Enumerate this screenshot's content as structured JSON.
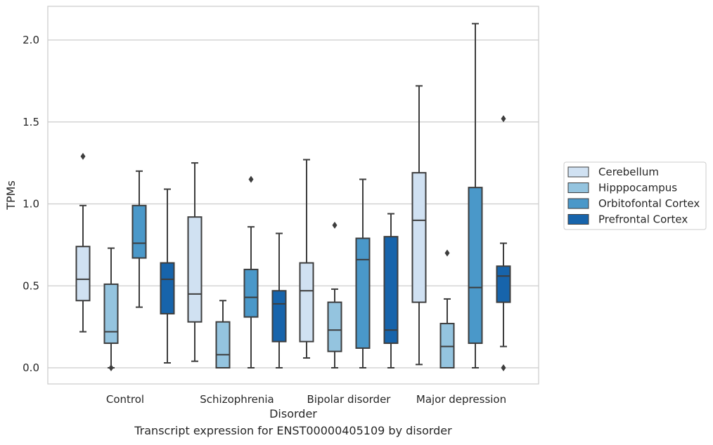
{
  "chart_data": {
    "type": "box",
    "caption": "Transcript expression for ENST00000405109 by disorder",
    "xlabel": "Disorder",
    "ylabel": "TPMs",
    "ylim": [
      -0.1,
      2.22
    ],
    "yticks": [
      "0.0",
      "0.5",
      "1.0",
      "1.5",
      "2.0"
    ],
    "ytick_values": [
      0.0,
      0.5,
      1.0,
      1.5,
      2.0
    ],
    "grid": "horizontal",
    "legend_position": "right",
    "categories": [
      "Control",
      "Schizophrenia",
      "Bipolar disorder",
      "Major depression"
    ],
    "series": [
      {
        "name": "Cerebellum",
        "color": "#d0e1f2",
        "boxes": [
          {
            "whislo": 0.22,
            "q1": 0.41,
            "med": 0.54,
            "q3": 0.74,
            "whishi": 0.99,
            "fliers": [
              1.29
            ]
          },
          {
            "whislo": 0.04,
            "q1": 0.28,
            "med": 0.45,
            "q3": 0.92,
            "whishi": 1.25,
            "fliers": []
          },
          {
            "whislo": 0.06,
            "q1": 0.16,
            "med": 0.47,
            "q3": 0.64,
            "whishi": 1.27,
            "fliers": []
          },
          {
            "whislo": 0.02,
            "q1": 0.4,
            "med": 0.9,
            "q3": 1.19,
            "whishi": 1.72,
            "fliers": []
          }
        ]
      },
      {
        "name": "Hipppocampus",
        "color": "#94c4df",
        "boxes": [
          {
            "whislo": 0.0,
            "q1": 0.15,
            "med": 0.22,
            "q3": 0.51,
            "whishi": 0.73,
            "fliers": [
              0.0
            ]
          },
          {
            "whislo": 0.0,
            "q1": 0.0,
            "med": 0.08,
            "q3": 0.28,
            "whishi": 0.41,
            "fliers": []
          },
          {
            "whislo": 0.0,
            "q1": 0.1,
            "med": 0.23,
            "q3": 0.4,
            "whishi": 0.48,
            "fliers": [
              0.87
            ]
          },
          {
            "whislo": 0.0,
            "q1": 0.0,
            "med": 0.13,
            "q3": 0.27,
            "whishi": 0.42,
            "fliers": [
              0.7
            ]
          }
        ]
      },
      {
        "name": "Orbitofontal Cortex",
        "color": "#4a98c9",
        "boxes": [
          {
            "whislo": 0.37,
            "q1": 0.67,
            "med": 0.76,
            "q3": 0.99,
            "whishi": 1.2,
            "fliers": []
          },
          {
            "whislo": 0.0,
            "q1": 0.31,
            "med": 0.43,
            "q3": 0.6,
            "whishi": 0.86,
            "fliers": [
              1.15
            ]
          },
          {
            "whislo": 0.0,
            "q1": 0.12,
            "med": 0.66,
            "q3": 0.79,
            "whishi": 1.15,
            "fliers": []
          },
          {
            "whislo": 0.0,
            "q1": 0.15,
            "med": 0.49,
            "q3": 1.1,
            "whishi": 2.1,
            "fliers": []
          }
        ]
      },
      {
        "name": "Prefrontal Cortex",
        "color": "#1764ab",
        "boxes": [
          {
            "whislo": 0.03,
            "q1": 0.33,
            "med": 0.54,
            "q3": 0.64,
            "whishi": 1.09,
            "fliers": []
          },
          {
            "whislo": 0.0,
            "q1": 0.16,
            "med": 0.39,
            "q3": 0.47,
            "whishi": 0.82,
            "fliers": []
          },
          {
            "whislo": 0.0,
            "q1": 0.15,
            "med": 0.23,
            "q3": 0.8,
            "whishi": 0.94,
            "fliers": []
          },
          {
            "whislo": 0.13,
            "q1": 0.4,
            "med": 0.56,
            "q3": 0.62,
            "whishi": 0.76,
            "fliers": [
              1.52,
              0.0
            ]
          }
        ]
      }
    ]
  }
}
